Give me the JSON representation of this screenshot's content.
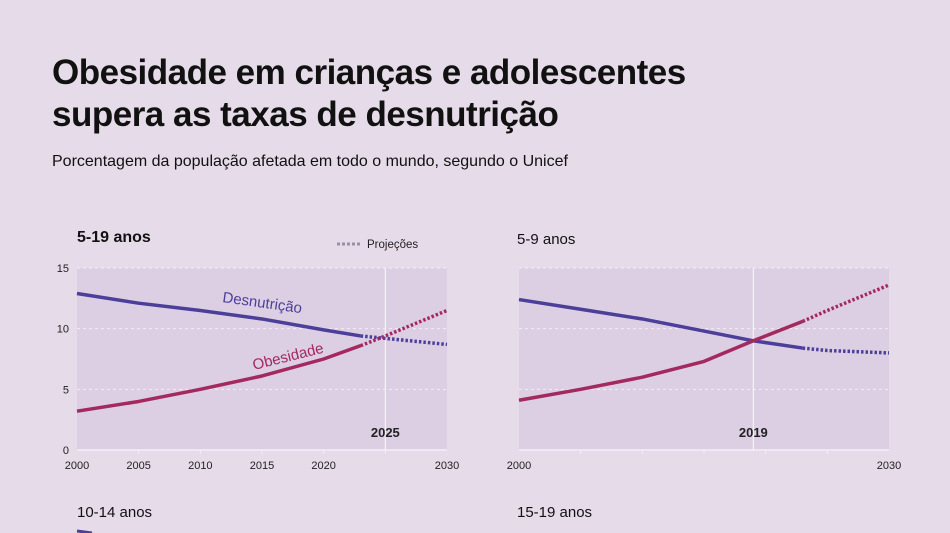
{
  "title_line1": "Obesidade em crianças e adolescentes",
  "title_line2": "supera as taxas de desnutrição",
  "subtitle": "Porcentagem da população afetada em todo o mundo, segundo o Unicef",
  "legend": {
    "projection_label": "Projeções"
  },
  "colors": {
    "desnutricao": "#4b3f9a",
    "obesidade": "#a3295f",
    "plot_bg": "#dccfe4",
    "page_bg": "#e6dbe9",
    "projection_legend": "#9a8fa6"
  },
  "lower_panels": [
    "10-14 anos",
    "15-19 anos"
  ],
  "chart_data": [
    {
      "type": "line",
      "title": "5-19 anos",
      "xlim": [
        2000,
        2030
      ],
      "ylim": [
        0,
        15
      ],
      "yticks": [
        "0",
        "5",
        "10",
        "15"
      ],
      "xticks": [
        "2000",
        "2005",
        "2010",
        "2015",
        "2020",
        "2030"
      ],
      "marker_year": "2025",
      "projection_start": 2023,
      "grid": true,
      "x": [
        2000,
        2005,
        2010,
        2015,
        2020,
        2023,
        2025,
        2030
      ],
      "series": [
        {
          "name": "Desnutrição",
          "values": [
            12.9,
            12.1,
            11.5,
            10.8,
            9.9,
            9.4,
            9.2,
            8.7
          ]
        },
        {
          "name": "Obesidade",
          "values": [
            3.2,
            4.0,
            5.0,
            6.1,
            7.5,
            8.6,
            9.4,
            11.5
          ]
        }
      ]
    },
    {
      "type": "line",
      "title": "5-9 anos",
      "xlim": [
        2000,
        2030
      ],
      "ylim": [
        0,
        15
      ],
      "yticks": [],
      "xticks": [
        "2000",
        "2030"
      ],
      "marker_year": "2019",
      "projection_start": 2023,
      "grid": true,
      "x": [
        2000,
        2005,
        2010,
        2015,
        2019,
        2023,
        2025,
        2030
      ],
      "series": [
        {
          "values": [
            12.4,
            11.6,
            10.8,
            9.8,
            9.0,
            8.4,
            8.2,
            8.0
          ]
        },
        {
          "values": [
            4.1,
            5.0,
            6.0,
            7.3,
            9.0,
            10.6,
            11.5,
            13.6
          ]
        }
      ]
    }
  ]
}
